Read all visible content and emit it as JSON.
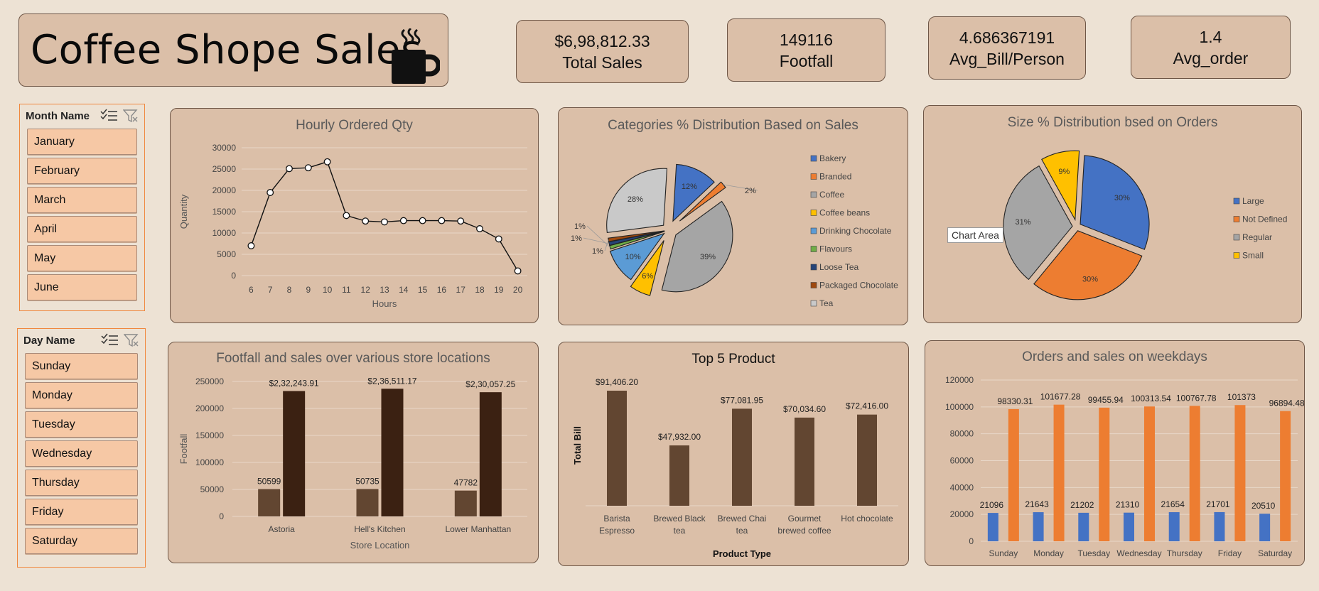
{
  "header": {
    "title": "Coffee Shope Sales",
    "icon": "coffee-mug-icon"
  },
  "kpis": [
    {
      "value": "$6,98,812.33",
      "label": "Total Sales"
    },
    {
      "value": "149116",
      "label": "Footfall"
    },
    {
      "value": "4.686367191",
      "label": "Avg_Bill/Person"
    },
    {
      "value": "1.4",
      "label": "Avg_order"
    }
  ],
  "month_slicer": {
    "title": "Month Name",
    "items": [
      "January",
      "February",
      "March",
      "April",
      "May",
      "June"
    ]
  },
  "day_slicer": {
    "title": "Day Name",
    "items": [
      "Sunday",
      "Monday",
      "Tuesday",
      "Wednesday",
      "Thursday",
      "Friday",
      "Saturday"
    ]
  },
  "tooltip": "Chart Area",
  "colors": {
    "accent_orange": "#ed7d31",
    "blue": "#4472c4",
    "gray": "#a5a5a5",
    "yellow": "#ffc000",
    "brown_dark": "#3b2112",
    "brown_mid": "#624631",
    "panel_bg": "#dbbfa8",
    "page_bg": "#ede2d4"
  },
  "chart_data": [
    {
      "id": "hourly",
      "type": "line",
      "title": "Hourly Ordered Qty",
      "xlabel": "Hours",
      "ylabel": "Quantity",
      "x": [
        6,
        7,
        8,
        9,
        10,
        11,
        12,
        13,
        14,
        15,
        16,
        17,
        18,
        19,
        20
      ],
      "values": [
        7000,
        19500,
        25100,
        25300,
        26700,
        14100,
        12800,
        12600,
        12900,
        12900,
        12900,
        12800,
        11000,
        8600,
        1100
      ],
      "yticks": [
        "30000",
        "25000",
        "20000",
        "15000",
        "10000",
        "5000",
        "0"
      ],
      "ylim": [
        0,
        30000
      ],
      "grid": true
    },
    {
      "id": "categories",
      "type": "pie",
      "title": "Categories % Distribution Based on Sales",
      "legend_position": "right",
      "slices": [
        {
          "name": "Bakery",
          "value": 12,
          "label": "12%",
          "color": "#4472c4"
        },
        {
          "name": "Branded",
          "value": 2,
          "label": "2%",
          "color": "#ed7d31"
        },
        {
          "name": "Coffee",
          "value": 39,
          "label": "39%",
          "color": "#a5a5a5"
        },
        {
          "name": "Coffee beans",
          "value": 6,
          "label": "6%",
          "color": "#ffc000"
        },
        {
          "name": "Drinking Chocolate",
          "value": 10,
          "label": "10%",
          "color": "#5b9bd5"
        },
        {
          "name": "Flavours",
          "value": 1,
          "label": "1%",
          "color": "#70ad47"
        },
        {
          "name": "Loose Tea",
          "value": 1,
          "label": "1%",
          "color": "#264478"
        },
        {
          "name": "Packaged Chocolate",
          "value": 1,
          "label": "1%",
          "color": "#9e480e"
        },
        {
          "name": "Tea",
          "value": 28,
          "label": "28%",
          "color": "#c9c9c9"
        }
      ]
    },
    {
      "id": "sizes",
      "type": "pie",
      "title": "Size % Distribution bsed on Orders",
      "legend_position": "right",
      "slices": [
        {
          "name": "Large",
          "value": 30,
          "label": "30%",
          "color": "#4472c4"
        },
        {
          "name": "Not Defined",
          "value": 30,
          "label": "30%",
          "color": "#ed7d31"
        },
        {
          "name": "Regular",
          "value": 31,
          "label": "31%",
          "color": "#a5a5a5"
        },
        {
          "name": "Small",
          "value": 9,
          "label": "9%",
          "color": "#ffc000"
        }
      ]
    },
    {
      "id": "locations",
      "type": "bar",
      "title": "Footfall  and sales over various store locations",
      "xlabel": "Store Location",
      "ylabel": "Footfall",
      "categories": [
        "Astoria",
        "Hell's Kitchen",
        "Lower Manhattan"
      ],
      "series": [
        {
          "values": [
            50599,
            50735,
            47782
          ],
          "labels": [
            "50599",
            "50735",
            "47782"
          ]
        },
        {
          "values": [
            232243.91,
            236511.17,
            230057.25
          ],
          "labels": [
            "$2,32,243.91",
            "$2,36,511.17",
            "$2,30,057.25"
          ]
        }
      ],
      "yticks": [
        "250000",
        "200000",
        "150000",
        "100000",
        "50000",
        "0"
      ],
      "ylim": [
        0,
        250000
      ]
    },
    {
      "id": "top5",
      "type": "bar",
      "title": "Top 5 Product",
      "xlabel": "Product Type",
      "ylabel": "Total Bill",
      "categories": [
        [
          "Barista",
          "Espresso"
        ],
        [
          "Brewed Black",
          "tea"
        ],
        [
          "Brewed Chai",
          "tea"
        ],
        [
          "Gourmet",
          "brewed coffee"
        ],
        [
          "Hot chocolate"
        ]
      ],
      "values": [
        91406.2,
        47932.0,
        77081.95,
        70034.6,
        72416.0
      ],
      "labels": [
        "$91,406.20",
        "$47,932.00",
        "$77,081.95",
        "$70,034.60",
        "$72,416.00"
      ]
    },
    {
      "id": "weekdays",
      "type": "bar",
      "title": "Orders and sales on weekdays",
      "categories": [
        "Sunday",
        "Monday",
        "Tuesday",
        "Wednesday",
        "Thursday",
        "Friday",
        "Saturday"
      ],
      "series": [
        {
          "values": [
            21096,
            21643,
            21202,
            21310,
            21654,
            21701,
            20510
          ],
          "labels": [
            "21096",
            "21643",
            "21202",
            "21310",
            "21654",
            "21701",
            "20510"
          ]
        },
        {
          "values": [
            98330.31,
            101677.28,
            99455.94,
            100313.54,
            100767.78,
            101373,
            96894.48
          ],
          "labels": [
            "98330.31",
            "101677.28",
            "99455.94",
            "100313.54",
            "100767.78",
            "101373",
            "96894.48"
          ]
        }
      ],
      "yticks": [
        "120000",
        "100000",
        "80000",
        "60000",
        "40000",
        "20000",
        "0"
      ],
      "ylim": [
        0,
        120000
      ]
    }
  ]
}
